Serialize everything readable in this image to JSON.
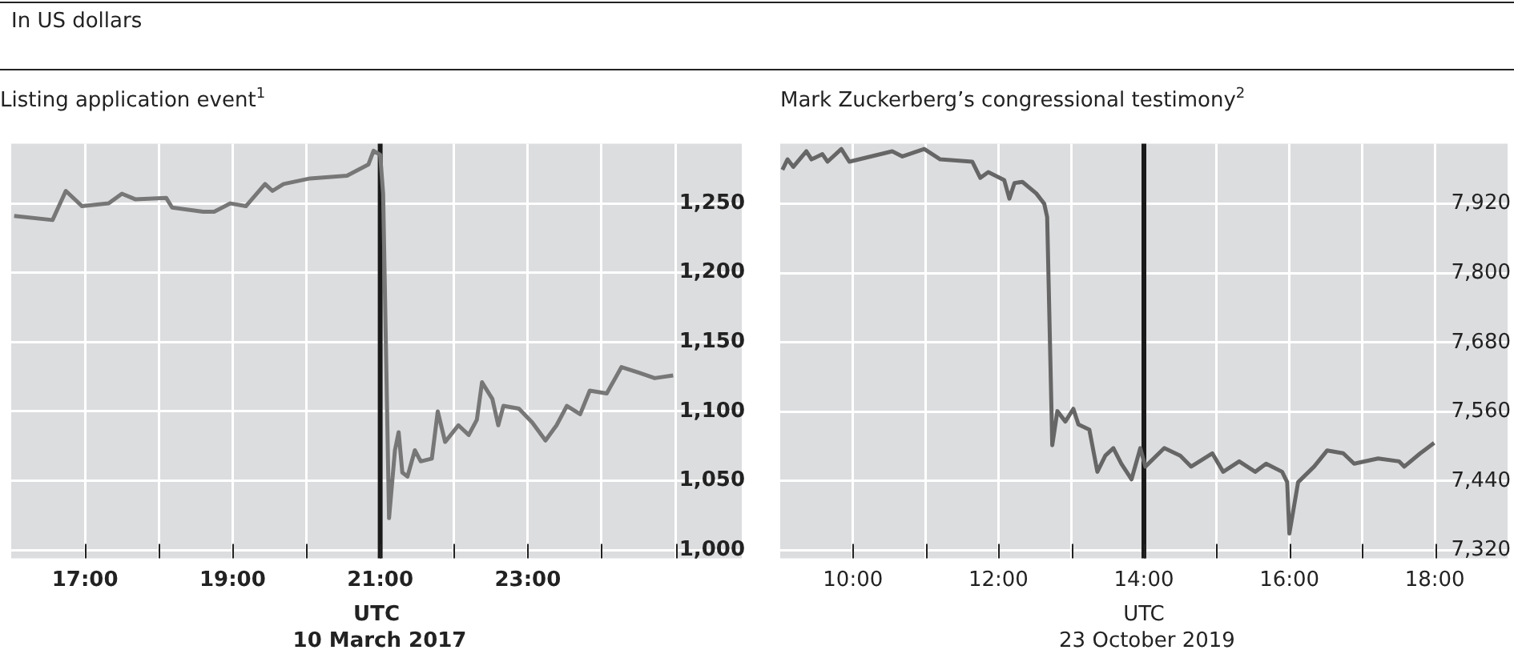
{
  "chart_data": [
    {
      "type": "line",
      "subtitle": "In US dollars",
      "title": "Listing application event$^{1}$",
      "xlabel": "UTC",
      "annotations": [
        "10 March 2017"
      ],
      "xlim": [
        16,
        25.9
      ],
      "xticks": [
        {
          "value": 17,
          "label": "17:00"
        },
        {
          "value": 18,
          "label": null
        },
        {
          "value": 19,
          "label": "19:00"
        },
        {
          "value": 20,
          "label": null
        },
        {
          "value": 21,
          "label": "21:00"
        },
        {
          "value": 22,
          "label": null
        },
        {
          "value": 23,
          "label": "23:00"
        },
        {
          "value": 24,
          "label": null
        },
        {
          "value": 25,
          "label": null
        }
      ],
      "ylim": [
        994,
        1293
      ],
      "yticks": [
        {
          "value": 1000,
          "label": "1,000"
        },
        {
          "value": 1050,
          "label": "1,050"
        },
        {
          "value": 1100,
          "label": "1,100"
        },
        {
          "value": 1150,
          "label": "1,150"
        },
        {
          "value": 1200,
          "label": "1,200"
        },
        {
          "value": 1250,
          "label": "1,250"
        }
      ],
      "grid": true,
      "legend": false,
      "ref_lines": [
        {
          "axis": "x",
          "value": 21,
          "color": "#1a1a1a"
        }
      ],
      "series": [
        {
          "color": "#777777",
          "x": [
            16.04,
            16.56,
            16.74,
            16.96,
            17.32,
            17.5,
            17.68,
            18.1,
            18.18,
            18.6,
            18.75,
            18.97,
            19.18,
            19.44,
            19.54,
            19.69,
            20.05,
            20.55,
            20.84,
            20.91,
            21.0,
            21.04,
            21.12,
            21.2,
            21.25,
            21.3,
            21.37,
            21.47,
            21.55,
            21.7,
            21.78,
            21.88,
            22.06,
            22.2,
            22.31,
            22.38,
            22.52,
            22.6,
            22.67,
            22.88,
            23.06,
            23.24,
            23.39,
            23.53,
            23.71,
            23.84,
            24.07,
            24.27,
            24.5,
            24.72,
            24.97
          ],
          "values": [
            1241,
            1238,
            1259,
            1248,
            1250,
            1257,
            1253,
            1254,
            1247,
            1244,
            1244,
            1250,
            1248,
            1264,
            1259,
            1264,
            1268,
            1270,
            1278,
            1288,
            1285,
            1257,
            1023,
            1072,
            1085,
            1056,
            1053,
            1072,
            1064,
            1066,
            1100,
            1078,
            1090,
            1083,
            1094,
            1121,
            1109,
            1090,
            1104,
            1102,
            1092,
            1079,
            1090,
            1104,
            1098,
            1115,
            1113,
            1132,
            1128,
            1124,
            1126
          ]
        }
      ]
    },
    {
      "type": "line",
      "title": "Mark Zuckerberg’s congressional testimony$^{2}$",
      "xlabel": "UTC",
      "annotations": [
        "23 October 2019"
      ],
      "xlim": [
        9,
        19
      ],
      "xticks": [
        {
          "value": 10,
          "label": "10:00"
        },
        {
          "value": 11,
          "label": null
        },
        {
          "value": 12,
          "label": "12:00"
        },
        {
          "value": 13,
          "label": null
        },
        {
          "value": 14,
          "label": "14:00"
        },
        {
          "value": 15,
          "label": null
        },
        {
          "value": 16,
          "label": "16:00"
        },
        {
          "value": 17,
          "label": null
        },
        {
          "value": 18,
          "label": "18:00"
        }
      ],
      "ylim": [
        7306,
        8024
      ],
      "yticks": [
        {
          "value": 7320,
          "label": "7,320"
        },
        {
          "value": 7440,
          "label": "7,440"
        },
        {
          "value": 7560,
          "label": "7,560"
        },
        {
          "value": 7680,
          "label": "7,680"
        },
        {
          "value": 7800,
          "label": "7,800"
        },
        {
          "value": 7920,
          "label": "7,920"
        }
      ],
      "grid": true,
      "legend": false,
      "ref_lines": [
        {
          "axis": "x",
          "value": 14,
          "color": "#1a1a1a"
        }
      ],
      "series": [
        {
          "color": "#666666",
          "x": [
            9.03,
            9.1,
            9.18,
            9.36,
            9.43,
            9.58,
            9.65,
            9.84,
            9.95,
            10.54,
            10.68,
            10.98,
            11.2,
            11.64,
            11.75,
            11.86,
            12.08,
            12.15,
            12.22,
            12.33,
            12.52,
            12.63,
            12.67,
            12.74,
            12.81,
            12.92,
            13.03,
            13.1,
            13.25,
            13.36,
            13.47,
            13.58,
            13.69,
            13.83,
            13.95,
            14.02,
            14.28,
            14.5,
            14.65,
            14.94,
            15.09,
            15.31,
            15.53,
            15.68,
            15.9,
            15.97,
            16.0,
            16.12,
            16.34,
            16.52,
            16.74,
            16.89,
            17.22,
            17.51,
            17.58,
            17.8,
            17.99
          ],
          "values": [
            7979,
            7997,
            7984,
            8011,
            7997,
            8006,
            7993,
            8015,
            7993,
            8011,
            8002,
            8015,
            7997,
            7993,
            7965,
            7975,
            7961,
            7929,
            7956,
            7958,
            7938,
            7920,
            7897,
            7502,
            7561,
            7543,
            7565,
            7538,
            7529,
            7456,
            7484,
            7497,
            7470,
            7443,
            7497,
            7465,
            7497,
            7484,
            7465,
            7488,
            7456,
            7474,
            7456,
            7470,
            7456,
            7438,
            7349,
            7438,
            7465,
            7493,
            7488,
            7470,
            7479,
            7474,
            7465,
            7488,
            7506
          ]
        }
      ]
    }
  ]
}
